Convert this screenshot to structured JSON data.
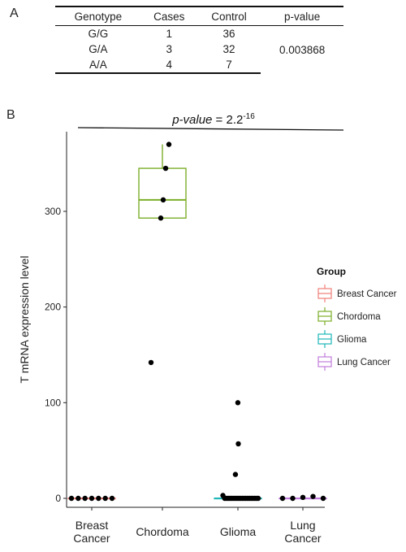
{
  "panel_a": {
    "label": "A",
    "headers": [
      "Genotype",
      "Cases",
      "Control",
      "p-value"
    ],
    "rows": [
      {
        "genotype": "G/G",
        "cases": "1",
        "control": "36"
      },
      {
        "genotype": "G/A",
        "cases": "3",
        "control": "32"
      },
      {
        "genotype": "A/A",
        "cases": "4",
        "control": "7"
      }
    ],
    "p_value": "0.003868"
  },
  "panel_b": {
    "label": "B"
  },
  "chart_data": {
    "type": "box",
    "ylabel": "T mRNA expression level",
    "xlabel": "",
    "ylim": [
      0,
      380
    ],
    "yticks": [
      0,
      100,
      200,
      300
    ],
    "grid": false,
    "legend_title": "Group",
    "legend_position": "right",
    "annotation_prefix": "p-value",
    "annotation_eq": " = 2.2",
    "annotation_exp": "-16",
    "categories": [
      "Breast\nCancer",
      "Chordoma",
      "Glioma",
      "Lung\nCancer"
    ],
    "series": [
      {
        "name": "Breast Cancer",
        "color": "#f07f79",
        "box": {
          "lower_whisker": 0,
          "q1": 0,
          "median": 0,
          "q3": 0,
          "upper_whisker": 0
        },
        "points": [
          0,
          0,
          0,
          0,
          0,
          0,
          0
        ]
      },
      {
        "name": "Chordoma",
        "color": "#7cae2a",
        "box": {
          "lower_whisker": 293,
          "q1": 293,
          "median": 312,
          "q3": 345,
          "upper_whisker": 370
        },
        "points": [
          370,
          345,
          312,
          293,
          142
        ]
      },
      {
        "name": "Glioma",
        "color": "#1fb7b8",
        "box": {
          "lower_whisker": 0,
          "q1": 0,
          "median": 0,
          "q3": 0,
          "upper_whisker": 0
        },
        "points": [
          100,
          57,
          25,
          3,
          0,
          0,
          0,
          0,
          0,
          0,
          0,
          0,
          0,
          0,
          0,
          0,
          0,
          0,
          0,
          0,
          0,
          0,
          0,
          0
        ]
      },
      {
        "name": "Lung Cancer",
        "color": "#c17ddc",
        "box": {
          "lower_whisker": 0,
          "q1": 0,
          "median": 0,
          "q3": 0,
          "upper_whisker": 0
        },
        "points": [
          0,
          0,
          1,
          2,
          0
        ]
      }
    ]
  }
}
